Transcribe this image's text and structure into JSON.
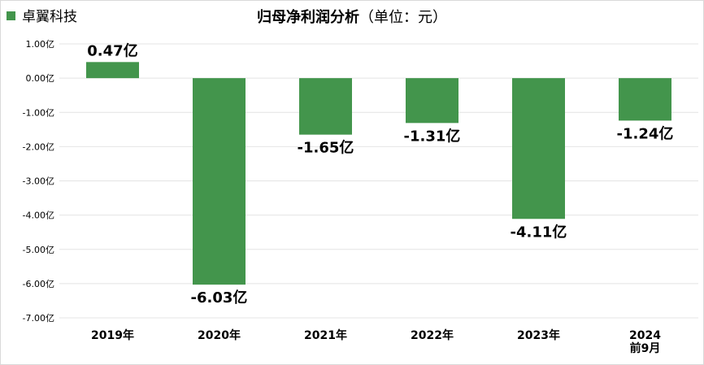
{
  "chart_data": {
    "type": "bar",
    "title": "归母净利润分析",
    "title_unit": "（单位：元）",
    "legend": {
      "label": "卓翼科技",
      "placement": "top-left"
    },
    "color": "#43954c",
    "categories": [
      "2019年",
      "2020年",
      "2021年",
      "2022年",
      "2023年",
      "2024前9月"
    ],
    "category_lines": [
      [
        "2019年"
      ],
      [
        "2020年"
      ],
      [
        "2021年"
      ],
      [
        "2022年"
      ],
      [
        "2023年"
      ],
      [
        "2024",
        "前9月"
      ]
    ],
    "values": [
      0.47,
      -6.03,
      -1.65,
      -1.31,
      -4.11,
      -1.24
    ],
    "value_labels": [
      "0.47亿",
      "-6.03亿",
      "-1.65亿",
      "-1.31亿",
      "-4.11亿",
      "-1.24亿"
    ],
    "yticks": [
      1,
      0,
      -1,
      -2,
      -3,
      -4,
      -5,
      -6,
      -7
    ],
    "ytick_labels": [
      "1.00亿",
      "0.00亿",
      "-1.00亿",
      "-2.00亿",
      "-3.00亿",
      "-4.00亿",
      "-5.00亿",
      "-6.00亿",
      "-7.00亿"
    ],
    "ylim": [
      -7,
      1
    ],
    "grid": true
  }
}
